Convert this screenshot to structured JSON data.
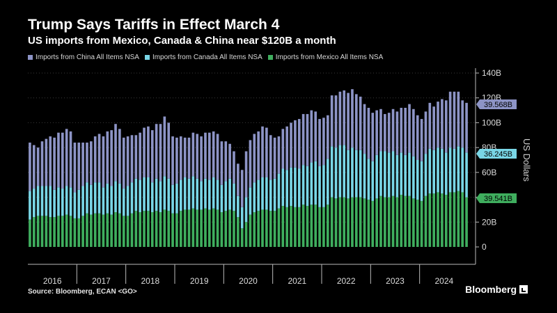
{
  "header": {
    "title": "Trump Says Tariffs in Effect March 4",
    "subtitle": "US imports from Mexico, Canada & China near $120B a month"
  },
  "footer": {
    "source": "Source: Bloomberg, ECAN <GO>",
    "brand": "Bloomberg"
  },
  "chart_data": {
    "type": "bar",
    "stacked": true,
    "ylabel": "US Dollars",
    "ylim": [
      0,
      140
    ],
    "y_ticks": [
      "0",
      "20B",
      "40B",
      "60B",
      "80B",
      "100B",
      "120B",
      "140B"
    ],
    "y_tick_values": [
      0,
      20,
      40,
      60,
      80,
      100,
      120,
      140
    ],
    "x_year_labels": [
      "2016",
      "2017",
      "2018",
      "2019",
      "2020",
      "2021",
      "2022",
      "2023",
      "2024"
    ],
    "x_start": "2016-01",
    "grid": true,
    "legend_position": "top",
    "series": [
      {
        "name": "Imports from Mexico All Items NSA",
        "color": "#3fae5e",
        "values": [
          22,
          24,
          25,
          25,
          25,
          24,
          24,
          25,
          25,
          26,
          25,
          23,
          23,
          25,
          27,
          26,
          27,
          27,
          26,
          27,
          26,
          28,
          27,
          25,
          25,
          27,
          29,
          28,
          29,
          29,
          28,
          29,
          28,
          30,
          29,
          27,
          27,
          29,
          30,
          30,
          31,
          30,
          30,
          31,
          30,
          31,
          30,
          28,
          29,
          30,
          29,
          24,
          15,
          20,
          26,
          28,
          29,
          30,
          30,
          29,
          29,
          31,
          33,
          32,
          33,
          32,
          32,
          34,
          33,
          34,
          34,
          32,
          32,
          34,
          40,
          39,
          40,
          40,
          39,
          40,
          40,
          40,
          39,
          38,
          37,
          39,
          41,
          40,
          40,
          41,
          40,
          42,
          41,
          41,
          39,
          38,
          37,
          41,
          43,
          43,
          44,
          43,
          42,
          44,
          44,
          45,
          44,
          40
        ]
      },
      {
        "name": "Imports from Canada All Items NSA",
        "color": "#79d6e6",
        "values": [
          23,
          23,
          24,
          24,
          24,
          25,
          22,
          23,
          22,
          23,
          23,
          21,
          23,
          24,
          25,
          24,
          25,
          25,
          22,
          24,
          23,
          25,
          24,
          22,
          24,
          25,
          26,
          26,
          27,
          27,
          24,
          26,
          25,
          27,
          26,
          23,
          24,
          25,
          26,
          25,
          26,
          25,
          23,
          24,
          24,
          25,
          24,
          22,
          24,
          25,
          22,
          17,
          17,
          20,
          22,
          24,
          25,
          26,
          26,
          25,
          26,
          28,
          30,
          30,
          31,
          32,
          31,
          32,
          32,
          34,
          35,
          33,
          34,
          37,
          41,
          41,
          42,
          42,
          39,
          40,
          38,
          38,
          36,
          33,
          32,
          35,
          36,
          37,
          36,
          36,
          34,
          34,
          33,
          35,
          34,
          32,
          32,
          34,
          36,
          35,
          36,
          36,
          34,
          36,
          35,
          36,
          36,
          36
        ]
      },
      {
        "name": "Imports from China All Items NSA",
        "color": "#8d94c6",
        "values": [
          39,
          35,
          31,
          36,
          38,
          40,
          42,
          44,
          45,
          46,
          45,
          40,
          38,
          35,
          32,
          35,
          37,
          39,
          41,
          42,
          45,
          46,
          44,
          41,
          40,
          38,
          35,
          38,
          40,
          41,
          42,
          44,
          46,
          48,
          45,
          39,
          37,
          35,
          32,
          33,
          35,
          36,
          36,
          37,
          38,
          37,
          37,
          35,
          32,
          28,
          26,
          26,
          30,
          37,
          38,
          39,
          39,
          41,
          40,
          36,
          33,
          30,
          32,
          35,
          36,
          38,
          40,
          41,
          42,
          42,
          40,
          38,
          38,
          35,
          41,
          42,
          43,
          44,
          46,
          47,
          45,
          43,
          40,
          41,
          39,
          36,
          34,
          30,
          32,
          34,
          35,
          36,
          38,
          39,
          38,
          36,
          34,
          34,
          37,
          35,
          37,
          40,
          42,
          45,
          46,
          44,
          38,
          40
        ]
      }
    ],
    "last_value_labels": [
      {
        "series": "Imports from China All Items NSA",
        "text": "39.568B",
        "color": "#8d94c6"
      },
      {
        "series": "Imports from Canada All Items NSA",
        "text": "36.245B",
        "color": "#79d6e6"
      },
      {
        "series": "Imports from Mexico All Items NSA",
        "text": "39.541B",
        "color": "#3fae5e"
      }
    ]
  }
}
